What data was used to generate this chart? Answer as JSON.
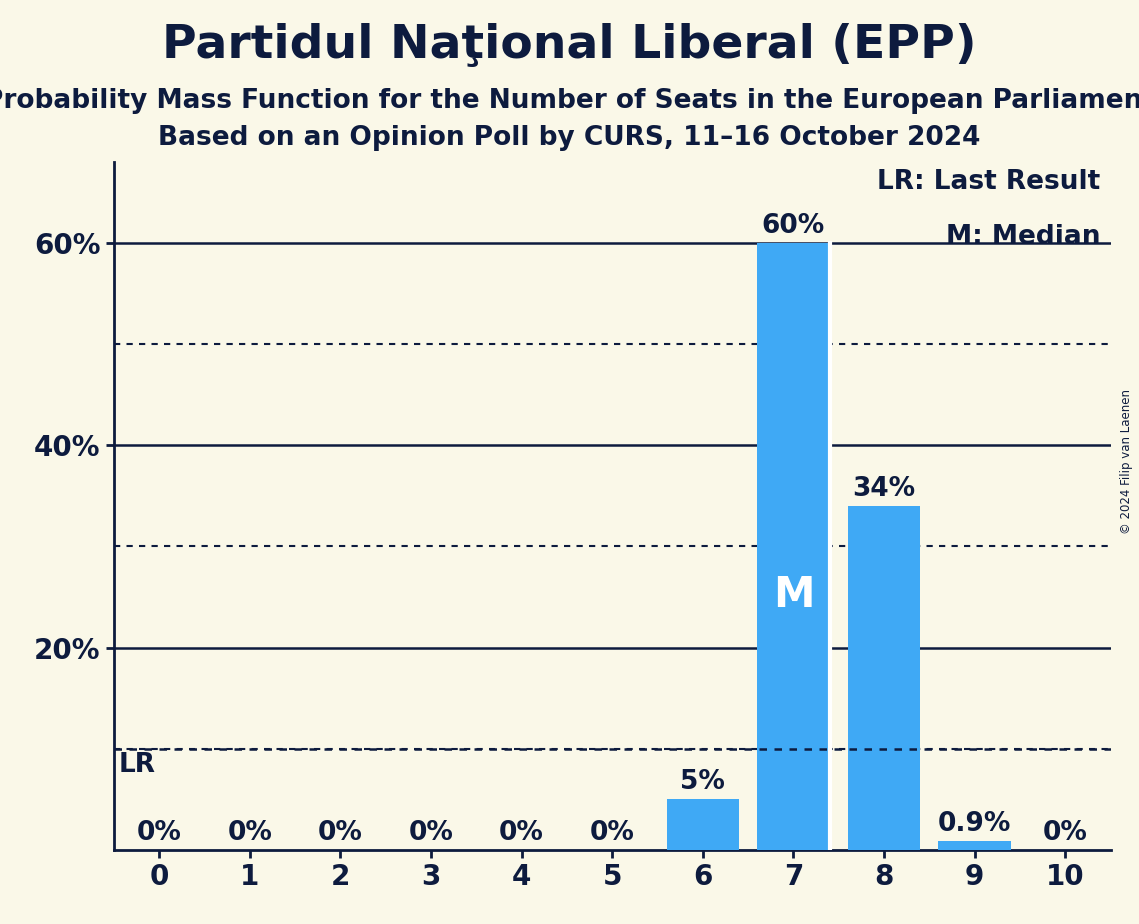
{
  "title": "Partidul Naţional Liberal (EPP)",
  "subtitle1": "Probability Mass Function for the Number of Seats in the European Parliament",
  "subtitle2": "Based on an Opinion Poll by CURS, 11–16 October 2024",
  "copyright": "© 2024 Filip van Laenen",
  "x_values": [
    0,
    1,
    2,
    3,
    4,
    5,
    6,
    7,
    8,
    9,
    10
  ],
  "y_values": [
    0.0,
    0.0,
    0.0,
    0.0,
    0.0,
    0.0,
    0.05,
    0.6,
    0.34,
    0.009,
    0.0
  ],
  "y_labels": [
    "0%",
    "0%",
    "0%",
    "0%",
    "0%",
    "0%",
    "5%",
    "60%",
    "34%",
    "0.9%",
    "0%"
  ],
  "bar_color": "#3fa9f5",
  "background_color": "#faf8e8",
  "text_color": "#0d1b3e",
  "median_seat": 7,
  "lr_value": 0.1,
  "legend_lr": "LR: Last Result",
  "legend_m": "M: Median",
  "ylim": [
    0,
    0.68
  ],
  "yticks_labeled": [
    0.2,
    0.4,
    0.6
  ],
  "ytick_labels": [
    "20%",
    "40%",
    "60%"
  ],
  "yticks_dotted": [
    0.1,
    0.3,
    0.5
  ],
  "title_fontsize": 34,
  "subtitle_fontsize": 19,
  "label_fontsize": 19,
  "tick_fontsize": 20,
  "bar_label_fontsize": 19,
  "m_label_fontsize": 30
}
